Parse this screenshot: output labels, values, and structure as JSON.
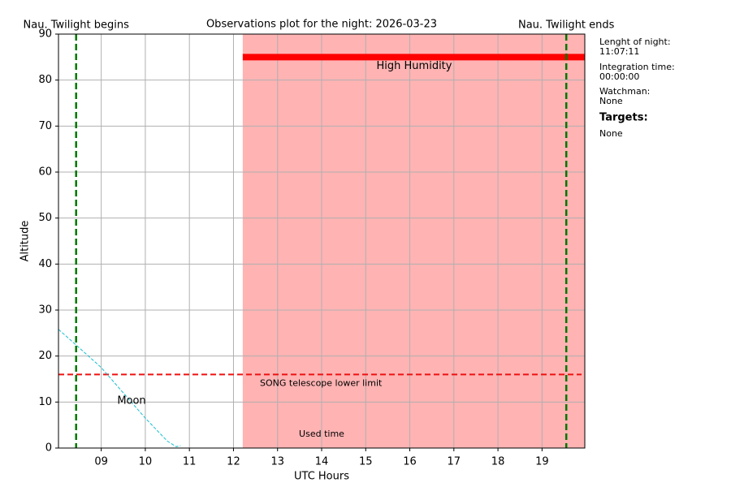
{
  "chart_data": {
    "type": "line",
    "title": "Observations plot for the night: 2026-03-23",
    "xlabel": "UTC Hours",
    "ylabel": "Altitude",
    "xlim": [
      8.03,
      19.97
    ],
    "ylim": [
      0,
      90
    ],
    "xticks": [
      {
        "value": 9,
        "label": "09"
      },
      10,
      11,
      12,
      13,
      14,
      15,
      16,
      17,
      18,
      19
    ],
    "yticks": [
      0,
      10,
      20,
      30,
      40,
      50,
      60,
      70,
      80,
      90
    ],
    "grid": true,
    "series": [
      {
        "name": "Moon",
        "color": "#17becf",
        "x": [
          8.03,
          8.43,
          9.0,
          9.5,
          10.0,
          10.5,
          10.7,
          10.8
        ],
        "values": [
          25.8,
          22.4,
          17.5,
          12.0,
          6.5,
          1.5,
          0.3,
          0.5
        ]
      }
    ],
    "twilight": {
      "begin": 8.43,
      "end": 19.55,
      "begin_label": "Nau. Twilight begins",
      "end_label": "Nau. Twilight ends",
      "color": "#007700"
    },
    "lower_limit": {
      "value": 16,
      "label": "SONG telescope lower limit",
      "color": "#ee1111"
    },
    "humidity": {
      "start": 12.21,
      "end": 19.97,
      "altitude": 85,
      "label": "High Humidity",
      "color": "#ff0000",
      "shade": "#ffb3b3"
    },
    "used_time_label": "Used time"
  },
  "side_panel": {
    "night_length_label": "Lenght of night:",
    "night_length": "11:07:11",
    "integration_label": "Integration time:",
    "integration": "00:00:00",
    "watchman_label": "Watchman:",
    "watchman": "None",
    "targets_label": "Targets:",
    "targets": "None"
  }
}
